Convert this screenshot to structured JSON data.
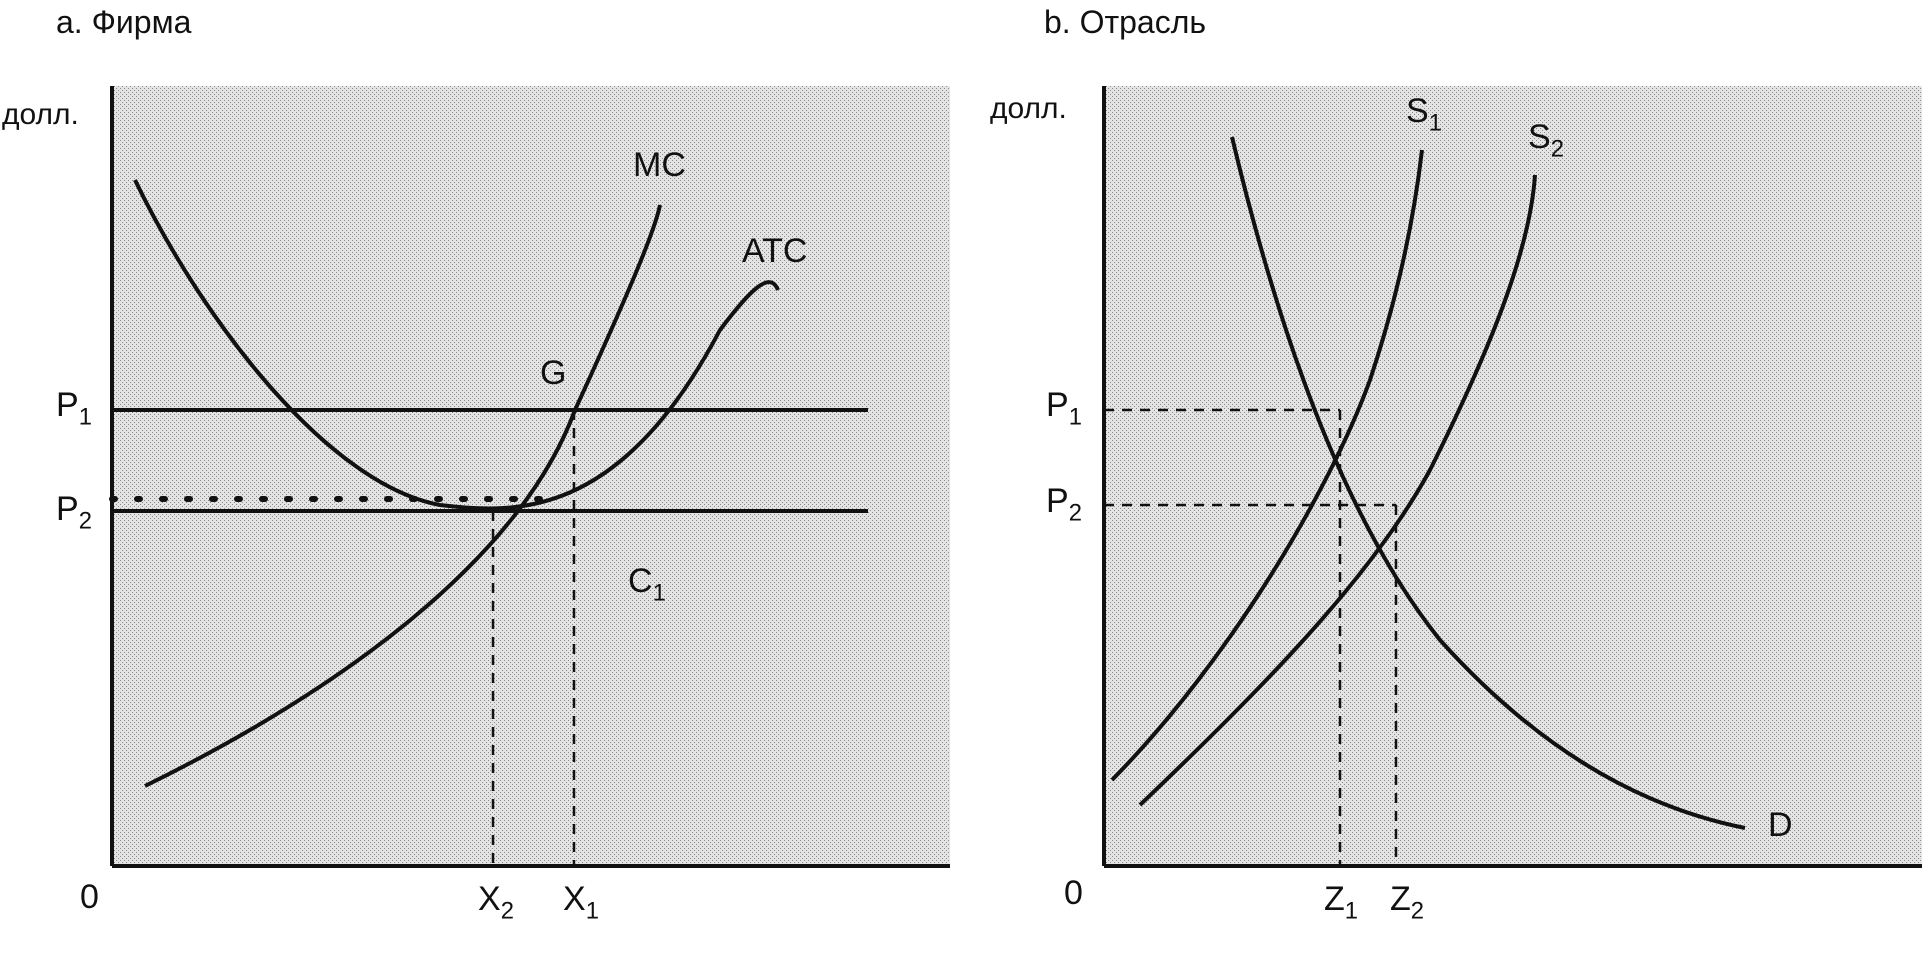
{
  "panel_a": {
    "title": "a. Фирма",
    "y_unit": "долл.",
    "origin": "0",
    "p1": {
      "letter": "P",
      "sub": "1"
    },
    "p2": {
      "letter": "P",
      "sub": "2"
    },
    "mc": "MC",
    "atc": "ATC",
    "point_g": "G",
    "c1": {
      "letter": "C",
      "sub": "1"
    },
    "x2": {
      "letter": "X",
      "sub": "2"
    },
    "x1": {
      "letter": "X",
      "sub": "1"
    }
  },
  "panel_b": {
    "title": "b. Отрасль",
    "y_unit": "долл.",
    "origin": "0",
    "p1": {
      "letter": "P",
      "sub": "1"
    },
    "p2": {
      "letter": "P",
      "sub": "2"
    },
    "s1": {
      "letter": "S",
      "sub": "1"
    },
    "s2": {
      "letter": "S",
      "sub": "2"
    },
    "d": "D",
    "z1": {
      "letter": "Z",
      "sub": "1"
    },
    "z2": {
      "letter": "Z",
      "sub": "2"
    }
  },
  "colors": {
    "line": "#111111",
    "fill": "#d6d6d6"
  }
}
